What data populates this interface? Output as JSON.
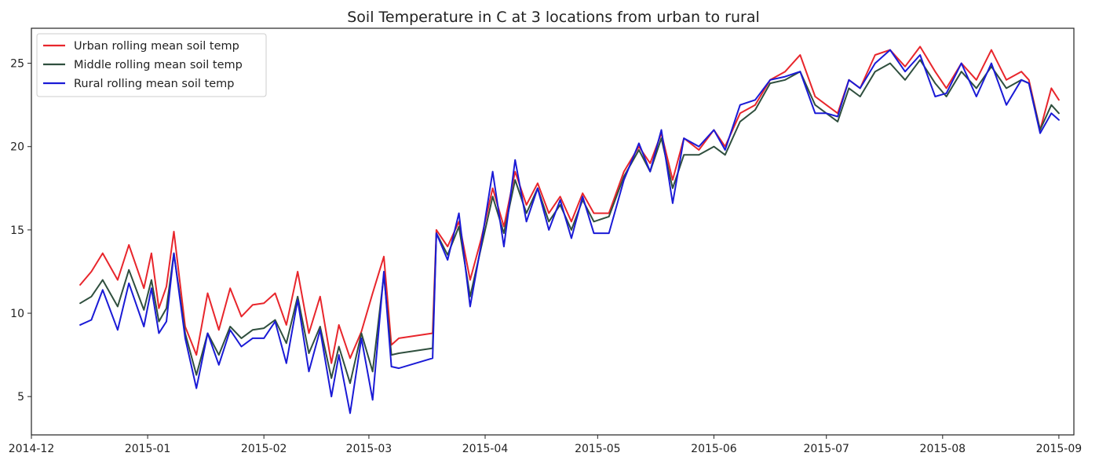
{
  "chart_data": {
    "type": "line",
    "title": "Soil Temperature in C at 3 locations from urban to rural",
    "xlabel": "",
    "ylabel": "",
    "xlim": [
      "2014-12-01",
      "2015-09-05"
    ],
    "ylim": [
      2.7,
      27.1
    ],
    "x_ticks": [
      "2014-12-01",
      "2015-01-01",
      "2015-02-01",
      "2015-03-01",
      "2015-04-01",
      "2015-05-01",
      "2015-06-01",
      "2015-07-01",
      "2015-08-01",
      "2015-09-01"
    ],
    "x_tick_labels": [
      "2014-12",
      "2015-01",
      "2015-02",
      "2015-03",
      "2015-04",
      "2015-05",
      "2015-06",
      "2015-07",
      "2015-08",
      "2015-09"
    ],
    "y_ticks": [
      5,
      10,
      15,
      20,
      25
    ],
    "grid": false,
    "legend_position": "top-left",
    "x": [
      "2014-12-14",
      "2014-12-17",
      "2014-12-20",
      "2014-12-24",
      "2014-12-27",
      "2014-12-31",
      "2015-01-02",
      "2015-01-04",
      "2015-01-06",
      "2015-01-08",
      "2015-01-11",
      "2015-01-14",
      "2015-01-17",
      "2015-01-20",
      "2015-01-23",
      "2015-01-26",
      "2015-01-29",
      "2015-02-01",
      "2015-02-04",
      "2015-02-07",
      "2015-02-10",
      "2015-02-13",
      "2015-02-16",
      "2015-02-19",
      "2015-02-21",
      "2015-02-24",
      "2015-02-27",
      "2015-03-02",
      "2015-03-05",
      "2015-03-07",
      "2015-03-09",
      "2015-03-18",
      "2015-03-19",
      "2015-03-22",
      "2015-03-25",
      "2015-03-28",
      "2015-03-31",
      "2015-04-03",
      "2015-04-06",
      "2015-04-09",
      "2015-04-12",
      "2015-04-15",
      "2015-04-18",
      "2015-04-21",
      "2015-04-24",
      "2015-04-27",
      "2015-04-30",
      "2015-05-04",
      "2015-05-08",
      "2015-05-12",
      "2015-05-15",
      "2015-05-18",
      "2015-05-21",
      "2015-05-24",
      "2015-05-28",
      "2015-06-01",
      "2015-06-04",
      "2015-06-08",
      "2015-06-12",
      "2015-06-16",
      "2015-06-20",
      "2015-06-24",
      "2015-06-28",
      "2015-07-01",
      "2015-07-04",
      "2015-07-07",
      "2015-07-10",
      "2015-07-14",
      "2015-07-18",
      "2015-07-22",
      "2015-07-26",
      "2015-07-30",
      "2015-08-02",
      "2015-08-06",
      "2015-08-10",
      "2015-08-14",
      "2015-08-18",
      "2015-08-22",
      "2015-08-24",
      "2015-08-27",
      "2015-08-30",
      "2015-09-01"
    ],
    "series": [
      {
        "name": "Urban rolling mean soil temp",
        "color": "#e8262c",
        "values": [
          11.7,
          12.5,
          13.6,
          12.0,
          14.1,
          11.5,
          13.6,
          10.3,
          11.6,
          14.9,
          9.2,
          7.5,
          11.2,
          9.0,
          11.5,
          9.8,
          10.5,
          10.6,
          11.2,
          9.3,
          12.5,
          8.8,
          11.0,
          7.0,
          9.3,
          7.3,
          8.9,
          11.2,
          13.4,
          8.1,
          8.5,
          8.8,
          15.0,
          14.0,
          15.5,
          12.0,
          14.5,
          17.5,
          15.2,
          18.5,
          16.5,
          17.8,
          16.0,
          17.0,
          15.5,
          17.2,
          16.0,
          16.0,
          18.5,
          20.0,
          19.0,
          20.8,
          18.0,
          20.5,
          19.8,
          21.0,
          20.0,
          22.0,
          22.5,
          24.0,
          24.5,
          25.5,
          23.0,
          22.5,
          22.0,
          24.0,
          23.5,
          25.5,
          25.8,
          24.8,
          26.0,
          24.5,
          23.5,
          25.0,
          24.0,
          25.8,
          24.0,
          24.5,
          24.0,
          21.0,
          23.5,
          22.8
        ]
      },
      {
        "name": "Middle rolling mean soil temp",
        "color": "#2f4f3e",
        "values": [
          10.6,
          11.0,
          12.0,
          10.4,
          12.6,
          10.2,
          12.0,
          9.5,
          10.3,
          13.6,
          8.8,
          6.3,
          8.8,
          7.5,
          9.2,
          8.5,
          9.0,
          9.1,
          9.6,
          8.2,
          11.0,
          7.6,
          9.2,
          6.1,
          8.0,
          5.8,
          8.8,
          6.5,
          12.3,
          7.5,
          7.6,
          7.9,
          14.8,
          13.5,
          15.2,
          11.0,
          14.0,
          17.0,
          14.8,
          18.0,
          16.0,
          17.5,
          15.5,
          16.5,
          15.0,
          16.8,
          15.5,
          15.8,
          18.2,
          19.8,
          18.5,
          20.5,
          17.5,
          19.5,
          19.5,
          20.0,
          19.5,
          21.5,
          22.2,
          23.8,
          24.0,
          24.5,
          22.5,
          22.0,
          21.5,
          23.5,
          23.0,
          24.5,
          25.0,
          24.0,
          25.2,
          23.8,
          23.0,
          24.5,
          23.5,
          24.8,
          23.5,
          24.0,
          23.8,
          21.0,
          22.5,
          22.0
        ]
      },
      {
        "name": "Rural rolling mean soil temp",
        "color": "#1a1ad6",
        "values": [
          9.3,
          9.6,
          11.4,
          9.0,
          11.8,
          9.2,
          11.5,
          8.8,
          9.5,
          13.6,
          8.5,
          5.5,
          8.8,
          6.9,
          9.0,
          8.0,
          8.5,
          8.5,
          9.5,
          7.0,
          10.8,
          6.5,
          9.0,
          5.0,
          7.5,
          4.0,
          8.5,
          4.8,
          12.5,
          6.8,
          6.7,
          7.3,
          14.8,
          13.2,
          16.0,
          10.4,
          14.2,
          18.5,
          14.0,
          19.2,
          15.5,
          17.5,
          15.0,
          16.8,
          14.5,
          17.0,
          14.8,
          14.8,
          18.0,
          20.2,
          18.5,
          21.0,
          16.6,
          20.5,
          20.0,
          21.0,
          19.8,
          22.5,
          22.8,
          24.0,
          24.2,
          24.5,
          22.0,
          22.0,
          21.8,
          24.0,
          23.5,
          25.0,
          25.8,
          24.5,
          25.5,
          23.0,
          23.2,
          25.0,
          23.0,
          25.0,
          22.5,
          24.0,
          23.8,
          20.8,
          22.0,
          21.6
        ]
      }
    ]
  }
}
